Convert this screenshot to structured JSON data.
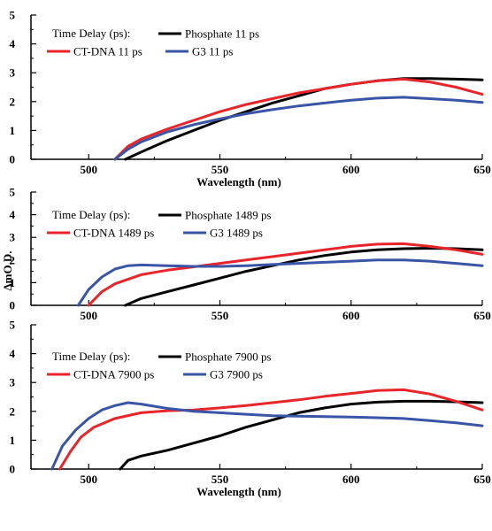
{
  "chart_data": [
    {
      "type": "line",
      "xlabel": "Wavelength (nm)",
      "ylabel": "",
      "xlim": [
        478,
        650
      ],
      "ylim": [
        0,
        5
      ],
      "xticks": [
        500,
        550,
        600,
        650
      ],
      "yticks": [
        0,
        1,
        2,
        3,
        4,
        5
      ],
      "legend_title": "Time Delay (ps):",
      "series": [
        {
          "name": "Phosphate 11 ps",
          "color": "#000000",
          "x": [
            514,
            520,
            530,
            540,
            550,
            560,
            570,
            580,
            590,
            600,
            610,
            620,
            630,
            640,
            650
          ],
          "y": [
            0.0,
            0.25,
            0.65,
            1.0,
            1.35,
            1.65,
            1.95,
            2.2,
            2.45,
            2.6,
            2.72,
            2.8,
            2.8,
            2.78,
            2.75
          ]
        },
        {
          "name": "CT-DNA 11 ps",
          "color": "#e8252a",
          "x": [
            510,
            515,
            520,
            530,
            540,
            550,
            560,
            570,
            580,
            590,
            600,
            610,
            620,
            630,
            640,
            650
          ],
          "y": [
            0.0,
            0.45,
            0.7,
            1.05,
            1.35,
            1.65,
            1.9,
            2.1,
            2.3,
            2.45,
            2.6,
            2.72,
            2.78,
            2.68,
            2.5,
            2.25
          ]
        },
        {
          "name": "G3 11 ps",
          "color": "#3a55a5",
          "x": [
            510,
            515,
            520,
            530,
            540,
            550,
            560,
            570,
            580,
            590,
            600,
            610,
            620,
            630,
            640,
            650
          ],
          "y": [
            0.0,
            0.35,
            0.6,
            0.95,
            1.2,
            1.4,
            1.58,
            1.72,
            1.85,
            1.95,
            2.05,
            2.12,
            2.15,
            2.1,
            2.05,
            1.97
          ]
        }
      ]
    },
    {
      "type": "line",
      "xlabel": "",
      "ylabel": "ΔmO.D.",
      "xlim": [
        478,
        650
      ],
      "ylim": [
        0,
        5
      ],
      "xticks": [
        500,
        550,
        600,
        650
      ],
      "yticks": [
        0,
        1,
        2,
        3,
        4,
        5
      ],
      "legend_title": "Time Delay (ps):",
      "series": [
        {
          "name": "Phosphate 1489 ps",
          "color": "#000000",
          "x": [
            514,
            520,
            530,
            540,
            550,
            560,
            570,
            580,
            590,
            600,
            610,
            620,
            630,
            640,
            650
          ],
          "y": [
            0.0,
            0.3,
            0.6,
            0.9,
            1.2,
            1.5,
            1.75,
            2.0,
            2.2,
            2.35,
            2.45,
            2.5,
            2.52,
            2.5,
            2.45
          ]
        },
        {
          "name": "CT-DNA 1489 ps",
          "color": "#e8252a",
          "x": [
            500,
            505,
            510,
            520,
            530,
            540,
            550,
            560,
            570,
            580,
            590,
            600,
            610,
            620,
            630,
            640,
            650
          ],
          "y": [
            0.0,
            0.6,
            0.95,
            1.35,
            1.55,
            1.7,
            1.85,
            2.0,
            2.15,
            2.3,
            2.45,
            2.6,
            2.7,
            2.72,
            2.6,
            2.45,
            2.25
          ]
        },
        {
          "name": "G3 1489 ps",
          "color": "#3a55a5",
          "x": [
            496,
            500,
            505,
            510,
            515,
            520,
            530,
            540,
            550,
            560,
            570,
            580,
            590,
            600,
            610,
            620,
            630,
            640,
            650
          ],
          "y": [
            0.0,
            0.7,
            1.25,
            1.6,
            1.75,
            1.78,
            1.75,
            1.72,
            1.72,
            1.75,
            1.8,
            1.85,
            1.9,
            1.95,
            2.0,
            2.0,
            1.95,
            1.85,
            1.75
          ]
        }
      ]
    },
    {
      "type": "line",
      "xlabel": "Wavelength (nm)",
      "ylabel": "",
      "xlim": [
        478,
        650
      ],
      "ylim": [
        0,
        5
      ],
      "xticks": [
        500,
        550,
        600,
        650
      ],
      "yticks": [
        0,
        1,
        2,
        3,
        4,
        5
      ],
      "legend_title": "Time Delay (ps):",
      "series": [
        {
          "name": "Phosphate 7900 ps",
          "color": "#000000",
          "x": [
            512,
            515,
            520,
            530,
            540,
            550,
            560,
            570,
            580,
            590,
            600,
            610,
            620,
            630,
            640,
            650
          ],
          "y": [
            0.0,
            0.3,
            0.45,
            0.65,
            0.9,
            1.15,
            1.45,
            1.7,
            1.95,
            2.12,
            2.25,
            2.32,
            2.35,
            2.35,
            2.33,
            2.3
          ]
        },
        {
          "name": "CT-DNA 7900 ps",
          "color": "#e8252a",
          "x": [
            489,
            493,
            497,
            502,
            510,
            520,
            530,
            540,
            550,
            560,
            570,
            580,
            590,
            600,
            610,
            620,
            630,
            640,
            650
          ],
          "y": [
            0.0,
            0.6,
            1.1,
            1.45,
            1.75,
            1.95,
            2.02,
            2.05,
            2.12,
            2.2,
            2.3,
            2.4,
            2.52,
            2.62,
            2.72,
            2.75,
            2.6,
            2.35,
            2.05
          ]
        },
        {
          "name": "G3 7900 ps",
          "color": "#3a55a5",
          "x": [
            486,
            490,
            495,
            500,
            505,
            510,
            515,
            520,
            530,
            540,
            550,
            560,
            570,
            580,
            590,
            600,
            610,
            620,
            630,
            640,
            650
          ],
          "y": [
            0.0,
            0.8,
            1.35,
            1.75,
            2.05,
            2.2,
            2.3,
            2.25,
            2.1,
            2.0,
            1.95,
            1.9,
            1.85,
            1.83,
            1.82,
            1.8,
            1.78,
            1.75,
            1.68,
            1.6,
            1.5
          ]
        }
      ]
    }
  ]
}
